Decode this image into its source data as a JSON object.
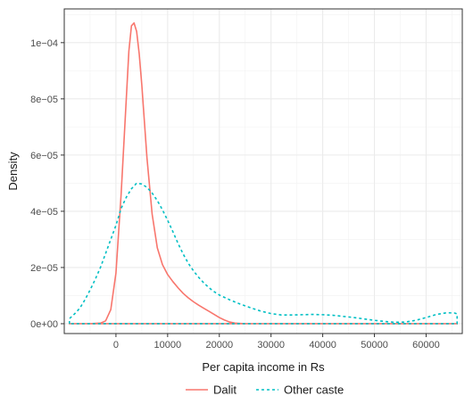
{
  "chart_data": {
    "type": "line",
    "subtype": "density",
    "xlabel": "Per capita income in Rs",
    "ylabel": "Density",
    "xlim": [
      -10000,
      67000
    ],
    "ylim": [
      -3.5e-06,
      0.000112
    ],
    "x_ticks": [
      0,
      10000,
      20000,
      30000,
      40000,
      50000,
      60000
    ],
    "x_tick_labels": [
      "0",
      "10000",
      "20000",
      "30000",
      "40000",
      "50000",
      "60000"
    ],
    "y_ticks": [
      0,
      2e-05,
      4e-05,
      6e-05,
      8e-05,
      0.0001
    ],
    "y_tick_labels": [
      "0e+00",
      "2e−05",
      "4e−05",
      "6e−05",
      "8e−05",
      "1e−04"
    ],
    "grid": true,
    "legend_position": "bottom",
    "series": [
      {
        "name": "Dalit",
        "color": "#F8766D",
        "linetype": "solid",
        "x": [
          -9000,
          -7000,
          -5000,
          -3000,
          -2000,
          -1000,
          0,
          1000,
          2000,
          2500,
          3000,
          3500,
          4000,
          4500,
          5000,
          5500,
          6000,
          7000,
          8000,
          9000,
          10000,
          11000,
          12000,
          13000,
          14000,
          15000,
          16000,
          17000,
          18000,
          19000,
          20000,
          21000,
          22000,
          23000,
          24000,
          25000,
          30000,
          40000,
          50000,
          60000,
          66000
        ],
        "y": [
          0,
          0,
          0,
          2e-07,
          1e-06,
          5e-06,
          1.8e-05,
          4.6e-05,
          8e-05,
          9.7e-05,
          0.000106,
          0.000107,
          0.000104,
          9.6e-05,
          8.5e-05,
          7.2e-05,
          5.9e-05,
          3.9e-05,
          2.7e-05,
          2.1e-05,
          1.75e-05,
          1.5e-05,
          1.28e-05,
          1.08e-05,
          9.2e-06,
          7.8e-06,
          6.6e-06,
          5.5e-06,
          4.4e-06,
          3.3e-06,
          2.2e-06,
          1.3e-06,
          6e-07,
          2e-07,
          1e-07,
          0,
          0,
          0,
          0,
          0,
          0
        ]
      },
      {
        "name": "Other caste",
        "color": "#00BFC4",
        "linetype": "dashed",
        "x": [
          -9000,
          -8000,
          -7000,
          -6000,
          -5000,
          -4000,
          -3000,
          -2000,
          -1000,
          0,
          1000,
          2000,
          3000,
          4000,
          5000,
          6000,
          7000,
          8000,
          9000,
          10000,
          11000,
          12000,
          13000,
          14000,
          15000,
          16000,
          17000,
          18000,
          19000,
          20000,
          22000,
          24000,
          26000,
          28000,
          30000,
          32000,
          34000,
          36000,
          38000,
          40000,
          42000,
          44000,
          46000,
          48000,
          50000,
          52000,
          54000,
          56000,
          58000,
          60000,
          62000,
          64000,
          65500,
          66000
        ],
        "y": [
          1.8e-06,
          3.5e-06,
          5.5e-06,
          8.5e-06,
          1.2e-05,
          1.58e-05,
          2e-05,
          2.5e-05,
          3e-05,
          3.5e-05,
          4.1e-05,
          4.5e-05,
          4.8e-05,
          5e-05,
          4.97e-05,
          4.85e-05,
          4.65e-05,
          4.38e-05,
          4.05e-05,
          3.68e-05,
          3.28e-05,
          2.86e-05,
          2.48e-05,
          2.15e-05,
          1.88e-05,
          1.65e-05,
          1.45e-05,
          1.28e-05,
          1.14e-05,
          1.02e-05,
          8.5e-06,
          7e-06,
          5.7e-06,
          4.5e-06,
          3.6e-06,
          3.1e-06,
          3.1e-06,
          3.2e-06,
          3.3e-06,
          3.2e-06,
          3e-06,
          2.6e-06,
          2.2e-06,
          1.7e-06,
          1.2e-06,
          8e-07,
          5e-07,
          6e-07,
          1.2e-06,
          2.2e-06,
          3.3e-06,
          3.9e-06,
          3.8e-06,
          3.5e-06
        ]
      }
    ]
  }
}
